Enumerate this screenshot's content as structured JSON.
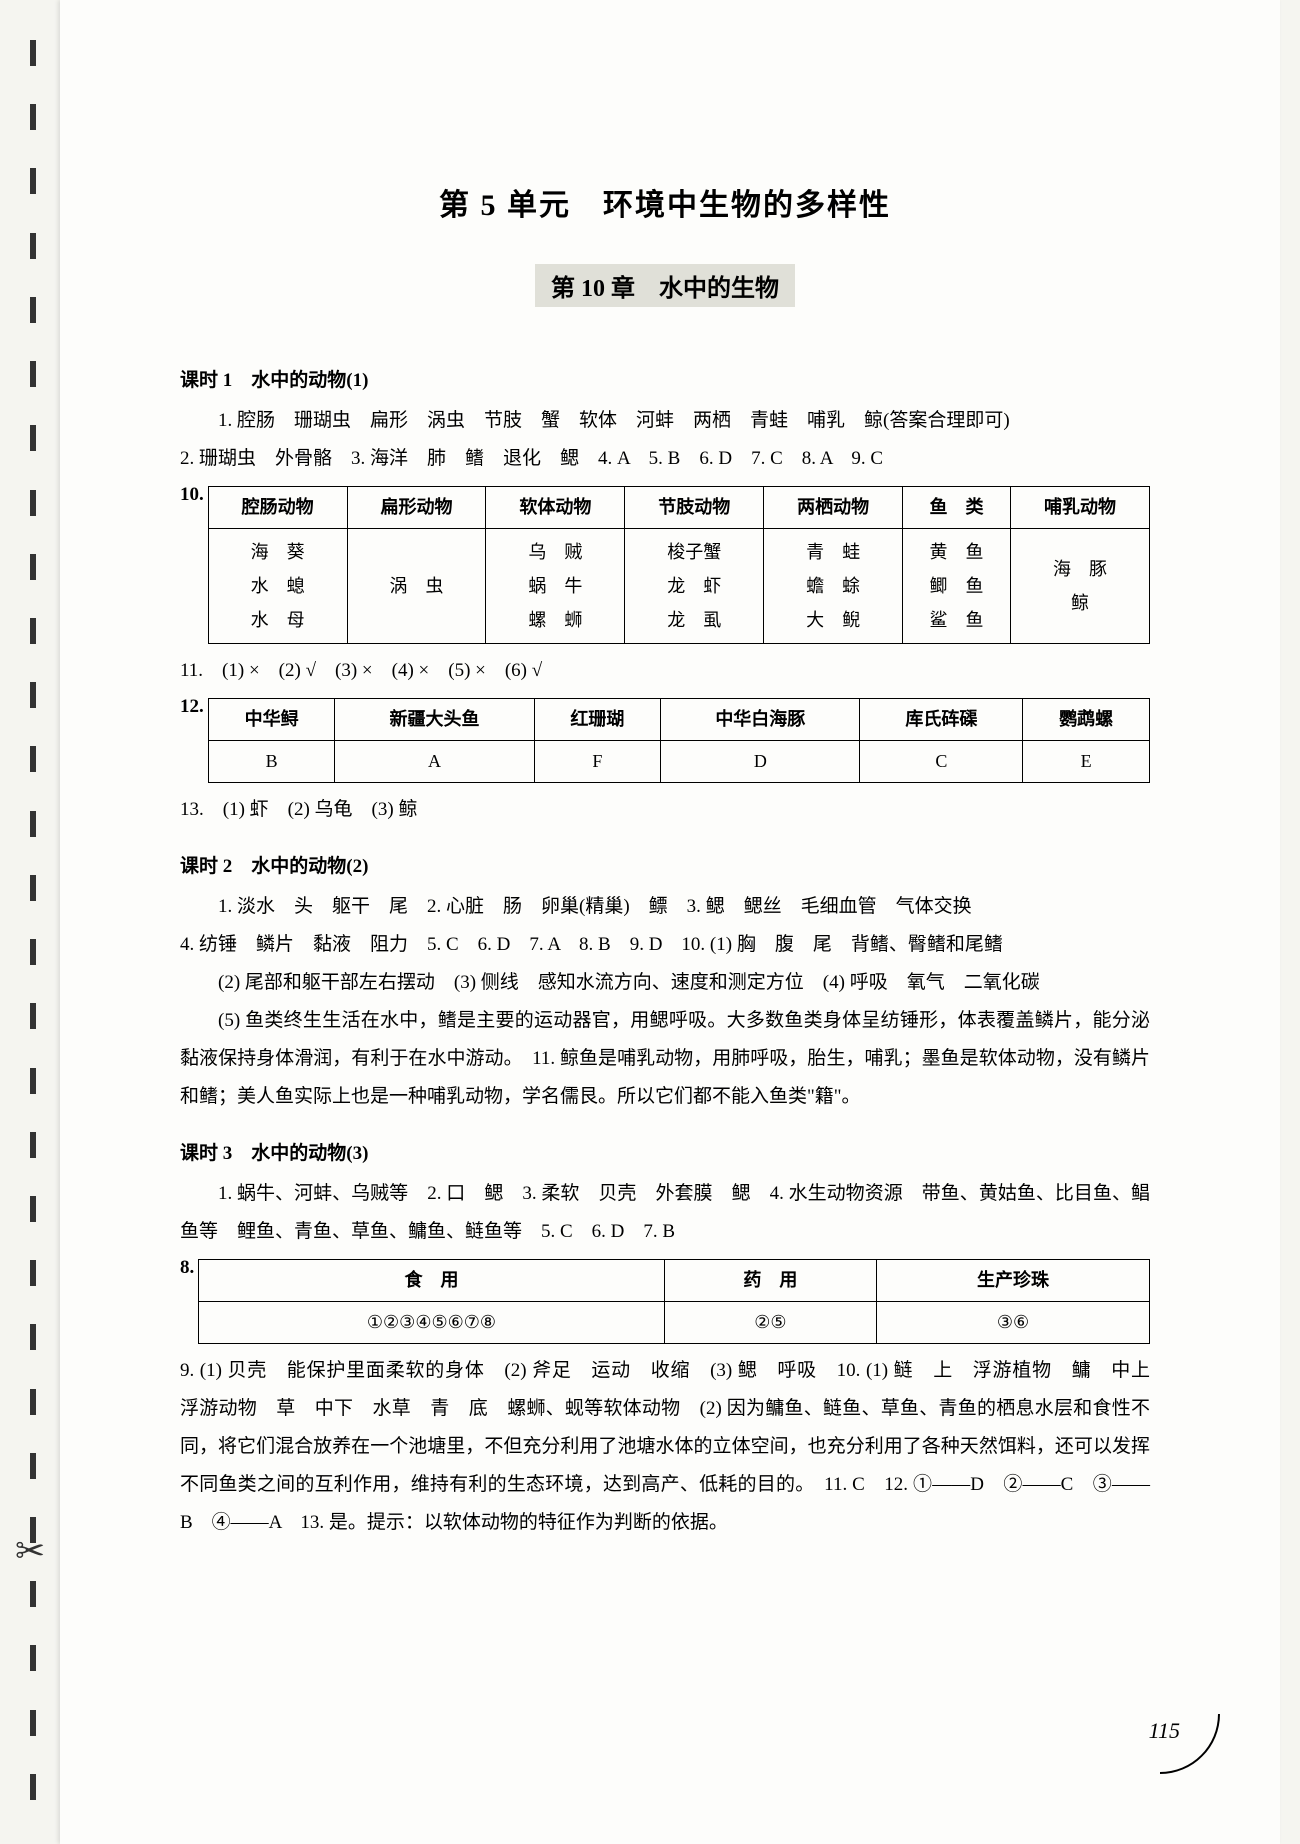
{
  "unit_title": "第 5 单元　环境中生物的多样性",
  "chapter_title": "第 10 章　水中的生物",
  "lesson1": {
    "heading": "课时 1　水中的动物(1)",
    "p1": "1. 腔肠　珊瑚虫　扁形　涡虫　节肢　蟹　软体　河蚌　两栖　青蛙　哺乳　鲸(答案合理即可)",
    "p2": "2. 珊瑚虫　外骨骼　3. 海洋　肺　鳍　退化　鳃　4. A　5. B　6. D　7. C　8. A　9. C",
    "t10_label": "10.",
    "t10_headers": [
      "腔肠动物",
      "扁形动物",
      "软体动物",
      "节肢动物",
      "两栖动物",
      "鱼　类",
      "哺乳动物"
    ],
    "t10_r": [
      "海　葵\n水　螅\n水　母",
      "涡　虫",
      "乌　贼\n蜗　牛\n螺　蛳",
      "梭子蟹\n龙　虾\n龙　虱",
      "青　蛙\n蟾　蜍\n大　鲵",
      "黄　鱼\n鲫　鱼\n鲨　鱼",
      "海　豚\n鲸"
    ],
    "p11": "11.　(1) ×　(2) √　(3) ×　(4) ×　(5) ×　(6) √",
    "t12_label": "12.",
    "t12_h": [
      "中华鲟",
      "新疆大头鱼",
      "红珊瑚",
      "中华白海豚",
      "库氏砗磲",
      "鹦鹉螺"
    ],
    "t12_r": [
      "B",
      "A",
      "F",
      "D",
      "C",
      "E"
    ],
    "p13": "13.　(1) 虾　(2) 乌龟　(3) 鲸"
  },
  "lesson2": {
    "heading": "课时 2　水中的动物(2)",
    "p1": "1. 淡水　头　躯干　尾　2. 心脏　肠　卵巢(精巢)　鳔　3. 鳃　鳃丝　毛细血管　气体交换",
    "p2": "4. 纺锤　鳞片　黏液　阻力　5. C　6. D　7. A　8. B　9. D　10. (1) 胸　腹　尾　背鳍、臀鳍和尾鳍",
    "p3": "(2) 尾部和躯干部左右摆动　(3) 侧线　感知水流方向、速度和测定方位　(4) 呼吸　氧气　二氧化碳",
    "p4": "(5) 鱼类终生生活在水中，鳍是主要的运动器官，用鳃呼吸。大多数鱼类身体呈纺锤形，体表覆盖鳞片，能分泌黏液保持身体滑润，有利于在水中游动。　11. 鲸鱼是哺乳动物，用肺呼吸，胎生，哺乳；墨鱼是软体动物，没有鳞片和鳍；美人鱼实际上也是一种哺乳动物，学名儒艮。所以它们都不能入鱼类\"籍\"。"
  },
  "lesson3": {
    "heading": "课时 3　水中的动物(3)",
    "p1": "1. 蜗牛、河蚌、乌贼等　2. 口　鳃　3. 柔软　贝壳　外套膜　鳃　4. 水生动物资源　带鱼、黄姑鱼、比目鱼、鲳鱼等　鲤鱼、青鱼、草鱼、鳙鱼、鲢鱼等　5. C　6. D　7. B",
    "t8_label": "8.",
    "t8_h": [
      "食　用",
      "药　用",
      "生产珍珠"
    ],
    "t8_r": [
      "①②③④⑤⑥⑦⑧",
      "②⑤",
      "③⑥"
    ],
    "p9": "9. (1) 贝壳　能保护里面柔软的身体　(2) 斧足　运动　收缩　(3) 鳃　呼吸　10. (1) 鲢　上　浮游植物　鳙　中上　浮游动物　草　中下　水草　青　底　螺蛳、蚬等软体动物　(2) 因为鳙鱼、鲢鱼、草鱼、青鱼的栖息水层和食性不同，将它们混合放养在一个池塘里，不但充分利用了池塘水体的立体空间，也充分利用了各种天然饵料，还可以发挥不同鱼类之间的互利作用，维持有利的生态环境，达到高产、低耗的目的。　11. C　12. ①——D　②——C　③——B　④——A　13. 是。提示：以软体动物的特征作为判断的依据。"
  },
  "page_number": "115"
}
